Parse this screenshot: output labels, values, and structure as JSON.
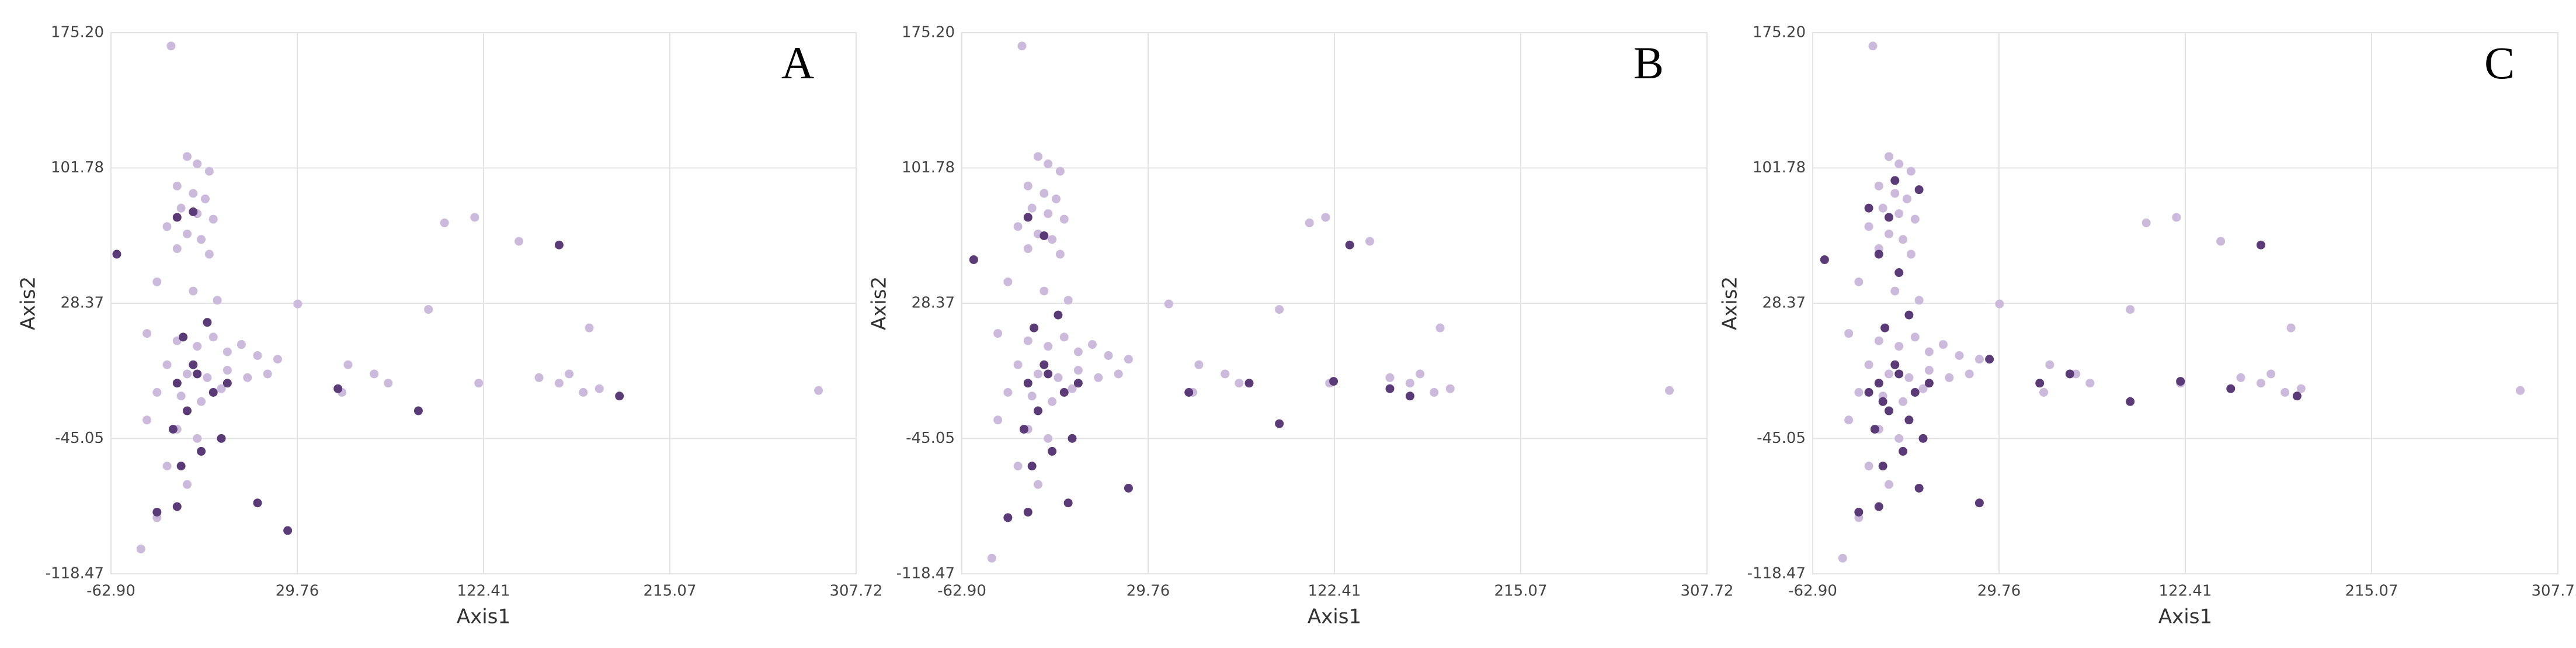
{
  "chart_data": [
    {
      "type": "scatter",
      "title": "A",
      "x_label": "Axis1",
      "y_label": "Axis2",
      "xlim": [
        -62.9,
        307.72
      ],
      "ylim": [
        -118.47,
        175.2
      ],
      "xticks": [
        {
          "value": -62.9,
          "label": "-62.90"
        },
        29.76,
        122.41,
        215.07,
        307.72
      ],
      "yticks": [
        -118.47,
        -45.05,
        28.37,
        101.78,
        {
          "value": 175.2,
          "label": "175.20"
        }
      ],
      "grid": true,
      "series": [
        {
          "color": "#cbbadb",
          "x": [
            -33,
            -25,
            -20,
            -14,
            -30,
            -22,
            -16,
            -28,
            -20,
            -12,
            -35,
            -25,
            -18,
            -30,
            -14,
            -40,
            -22,
            -10,
            -45,
            -30,
            -20,
            -12,
            -5,
            2,
            10,
            20,
            -35,
            -25,
            -15,
            -5,
            5,
            15,
            -40,
            -28,
            -18,
            -8,
            -45,
            -30,
            -20,
            -35,
            -25,
            -40,
            -48,
            30,
            55,
            52,
            68,
            75,
            95,
            103,
            118,
            140,
            160,
            165,
            172,
            180,
            175,
            150,
            120,
            289
          ],
          "values": [
            168,
            108,
            104,
            100,
            92,
            88,
            85,
            80,
            77,
            74,
            70,
            66,
            63,
            58,
            55,
            40,
            35,
            30,
            12,
            8,
            5,
            10,
            2,
            6,
            0,
            -2,
            -5,
            -10,
            -12,
            -8,
            -12,
            -10,
            -20,
            -22,
            -25,
            -18,
            -35,
            -40,
            -45,
            -60,
            -70,
            -88,
            -105,
            28,
            -5,
            -20,
            -10,
            -15,
            25,
            72,
            75,
            62,
            -15,
            -10,
            -20,
            -18,
            15,
            -12,
            -15,
            -19
          ]
        },
        {
          "color": "#5b3a78",
          "x": [
            -60,
            -30,
            -22,
            -27,
            -15,
            -20,
            -30,
            -12,
            -25,
            -32,
            -18,
            -8,
            -22,
            -5,
            -40,
            -30,
            10,
            25,
            50,
            90,
            160,
            190,
            -28
          ],
          "values": [
            55,
            75,
            78,
            10,
            18,
            -10,
            -15,
            -20,
            -30,
            -40,
            -52,
            -45,
            -5,
            -15,
            -85,
            -82,
            -80,
            -95,
            -18,
            -30,
            60,
            -22,
            -60
          ]
        }
      ]
    },
    {
      "type": "scatter",
      "title": "B",
      "x_label": "Axis1",
      "y_label": "Axis2",
      "xlim": [
        -62.9,
        307.72
      ],
      "ylim": [
        -118.47,
        175.2
      ],
      "xticks": [
        {
          "value": -62.9,
          "label": "-62.90"
        },
        29.76,
        122.41,
        215.07,
        307.72
      ],
      "yticks": [
        -118.47,
        -45.05,
        28.37,
        101.78,
        {
          "value": 175.2,
          "label": "175.20"
        }
      ],
      "grid": true,
      "series": [
        {
          "color": "#cbbadb",
          "x": [
            -33,
            -25,
            -20,
            -14,
            -30,
            -22,
            -16,
            -28,
            -20,
            -12,
            -35,
            -25,
            -18,
            -30,
            -14,
            -40,
            -22,
            -10,
            -45,
            -30,
            -20,
            -12,
            -5,
            2,
            10,
            20,
            -35,
            -25,
            -15,
            -5,
            5,
            15,
            -40,
            -28,
            -18,
            -8,
            -45,
            -30,
            -20,
            -35,
            -25,
            -40,
            -48,
            40,
            55,
            52,
            68,
            75,
            95,
            110,
            118,
            140,
            160,
            165,
            172,
            180,
            175,
            150,
            120,
            289
          ],
          "values": [
            168,
            108,
            104,
            100,
            92,
            88,
            85,
            80,
            77,
            74,
            70,
            66,
            63,
            58,
            55,
            40,
            35,
            30,
            12,
            8,
            5,
            10,
            2,
            6,
            0,
            -2,
            -5,
            -10,
            -12,
            -8,
            -12,
            -10,
            -20,
            -22,
            -25,
            -18,
            -35,
            -40,
            -45,
            -60,
            -70,
            -88,
            -110,
            28,
            -5,
            -20,
            -10,
            -15,
            25,
            72,
            75,
            62,
            -15,
            -10,
            -20,
            -18,
            15,
            -12,
            -15,
            -19
          ]
        },
        {
          "color": "#5b3a78",
          "x": [
            -57,
            -30,
            -22,
            -27,
            -15,
            -20,
            -30,
            -12,
            -25,
            -32,
            -18,
            -8,
            -22,
            -5,
            -40,
            -30,
            -10,
            20,
            50,
            80,
            95,
            130,
            122,
            150,
            160,
            -28
          ],
          "values": [
            52,
            75,
            65,
            15,
            22,
            -10,
            -15,
            -20,
            -30,
            -40,
            -52,
            -45,
            -5,
            -15,
            -88,
            -85,
            -80,
            -72,
            -20,
            -15,
            -37,
            60,
            -14,
            -18,
            -22,
            -60
          ]
        }
      ]
    },
    {
      "type": "scatter",
      "title": "C",
      "x_label": "Axis1",
      "y_label": "Axis2",
      "xlim": [
        -62.9,
        307.72
      ],
      "ylim": [
        -118.47,
        175.2
      ],
      "xticks": [
        {
          "value": -62.9,
          "label": "-62.90"
        },
        29.76,
        122.41,
        215.07,
        307.72
      ],
      "yticks": [
        -118.47,
        -45.05,
        28.37,
        101.78,
        {
          "value": 175.2,
          "label": "175.20"
        }
      ],
      "grid": true,
      "series": [
        {
          "color": "#cbbadb",
          "x": [
            -33,
            -25,
            -20,
            -14,
            -30,
            -22,
            -16,
            -28,
            -20,
            -12,
            -35,
            -25,
            -18,
            -30,
            -14,
            -40,
            -22,
            -10,
            -45,
            -30,
            -20,
            -12,
            -5,
            2,
            10,
            20,
            -35,
            -25,
            -15,
            -5,
            5,
            15,
            -40,
            -28,
            -18,
            -8,
            -45,
            -30,
            -20,
            -35,
            -25,
            -40,
            -48,
            30,
            55,
            52,
            68,
            75,
            95,
            103,
            118,
            140,
            160,
            165,
            172,
            180,
            175,
            150,
            120,
            289
          ],
          "values": [
            168,
            108,
            104,
            100,
            92,
            88,
            85,
            80,
            77,
            74,
            70,
            66,
            63,
            58,
            55,
            40,
            35,
            30,
            12,
            8,
            5,
            10,
            2,
            6,
            0,
            -2,
            -5,
            -10,
            -12,
            -8,
            -12,
            -10,
            -20,
            -22,
            -25,
            -18,
            -35,
            -40,
            -45,
            -60,
            -70,
            -88,
            -110,
            28,
            -5,
            -20,
            -10,
            -15,
            25,
            72,
            75,
            62,
            -15,
            -10,
            -20,
            -18,
            15,
            -12,
            -15,
            -19
          ]
        },
        {
          "color": "#5b3a78",
          "x": [
            -57,
            -35,
            -25,
            -22,
            -10,
            -30,
            -20,
            -27,
            -15,
            -20,
            -30,
            -12,
            -25,
            -32,
            -18,
            -8,
            -22,
            -5,
            -28,
            -15,
            -40,
            -30,
            -10,
            20,
            25,
            50,
            65,
            95,
            120,
            145,
            160,
            178,
            -28,
            -35
          ],
          "values": [
            52,
            80,
            75,
            95,
            90,
            55,
            45,
            15,
            22,
            -10,
            -15,
            -20,
            -30,
            -40,
            -52,
            -45,
            -5,
            -15,
            -25,
            -35,
            -85,
            -82,
            -72,
            -80,
            -2,
            -15,
            -10,
            -25,
            -14,
            -18,
            60,
            -22,
            -60,
            -20
          ]
        }
      ]
    }
  ]
}
